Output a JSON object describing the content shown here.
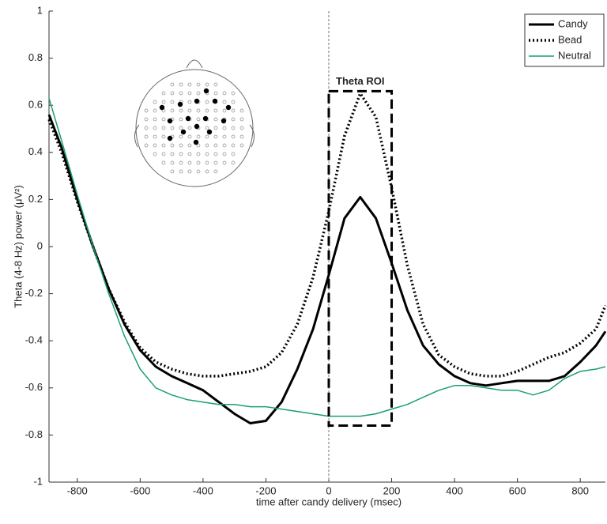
{
  "chart_data": {
    "type": "line",
    "xlabel": "time after candy delivery (msec)",
    "ylabel": "Theta (4-8 Hz) power (μV²)",
    "x": [
      -890,
      -850,
      -800,
      -750,
      -700,
      -650,
      -600,
      -550,
      -500,
      -450,
      -400,
      -350,
      -300,
      -250,
      -200,
      -150,
      -100,
      -50,
      0,
      50,
      100,
      150,
      200,
      250,
      300,
      350,
      400,
      450,
      500,
      550,
      600,
      650,
      700,
      750,
      800,
      850,
      880
    ],
    "series": [
      {
        "name": "Candy",
        "color": "#000000",
        "style": "solid",
        "width": 3,
        "values": [
          0.56,
          0.42,
          0.2,
          0.0,
          -0.18,
          -0.33,
          -0.44,
          -0.51,
          -0.55,
          -0.58,
          -0.61,
          -0.66,
          -0.71,
          -0.75,
          -0.74,
          -0.66,
          -0.52,
          -0.35,
          -0.12,
          0.12,
          0.21,
          0.12,
          -0.07,
          -0.27,
          -0.42,
          -0.5,
          -0.55,
          -0.58,
          -0.59,
          -0.58,
          -0.57,
          -0.57,
          -0.57,
          -0.55,
          -0.49,
          -0.42,
          -0.36
        ]
      },
      {
        "name": "Bead",
        "color": "#000000",
        "style": "dotted",
        "width": 3.5,
        "values": [
          0.54,
          0.4,
          0.19,
          0.0,
          -0.18,
          -0.32,
          -0.43,
          -0.49,
          -0.52,
          -0.54,
          -0.55,
          -0.55,
          -0.54,
          -0.53,
          -0.51,
          -0.45,
          -0.33,
          -0.13,
          0.15,
          0.47,
          0.65,
          0.55,
          0.25,
          -0.08,
          -0.33,
          -0.46,
          -0.51,
          -0.54,
          -0.55,
          -0.55,
          -0.53,
          -0.5,
          -0.47,
          -0.45,
          -0.41,
          -0.35,
          -0.25
        ]
      },
      {
        "name": "Neutral",
        "color": "#1a9e77",
        "style": "solid",
        "width": 1.5,
        "values": [
          0.63,
          0.45,
          0.22,
          0.0,
          -0.2,
          -0.38,
          -0.52,
          -0.6,
          -0.63,
          -0.65,
          -0.66,
          -0.67,
          -0.67,
          -0.68,
          -0.68,
          -0.69,
          -0.7,
          -0.71,
          -0.72,
          -0.72,
          -0.72,
          -0.71,
          -0.69,
          -0.67,
          -0.64,
          -0.61,
          -0.59,
          -0.59,
          -0.6,
          -0.61,
          -0.61,
          -0.63,
          -0.61,
          -0.56,
          -0.53,
          -0.52,
          -0.51
        ]
      }
    ],
    "xlim": [
      -890,
      880
    ],
    "ylim": [
      -1,
      1
    ],
    "xticks": [
      -800,
      -600,
      -400,
      -200,
      0,
      200,
      400,
      600,
      800
    ],
    "yticks": [
      -1,
      -0.8,
      -0.6,
      -0.4,
      -0.2,
      0,
      0.2,
      0.4,
      0.6,
      0.8,
      1
    ],
    "vline": 0,
    "roi": {
      "label": "Theta ROI",
      "x": [
        0,
        200
      ],
      "y": [
        -0.76,
        0.66
      ]
    },
    "legend": "upper right"
  }
}
